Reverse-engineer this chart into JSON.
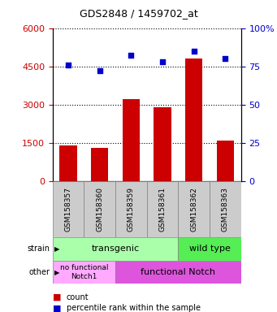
{
  "title": "GDS2848 / 1459702_at",
  "samples": [
    "GSM158357",
    "GSM158360",
    "GSM158359",
    "GSM158361",
    "GSM158362",
    "GSM158363"
  ],
  "counts": [
    1400,
    1300,
    3200,
    2900,
    4800,
    1600
  ],
  "percentiles": [
    76,
    72,
    82,
    78,
    85,
    80
  ],
  "ylim_left": [
    0,
    6000
  ],
  "ylim_right": [
    0,
    100
  ],
  "yticks_left": [
    0,
    1500,
    3000,
    4500,
    6000
  ],
  "yticks_right": [
    0,
    25,
    50,
    75,
    100
  ],
  "bar_color": "#cc0000",
  "dot_color": "#0000cc",
  "transgenic_color": "#aaffaa",
  "wildtype_color": "#55ee55",
  "nofunc_color": "#ffaaff",
  "func_color": "#dd55dd",
  "sample_box_color": "#cccccc",
  "tick_label_color_left": "#cc0000",
  "tick_label_color_right": "#0000cc",
  "legend_count_label": "count",
  "legend_pct_label": "percentile rank within the sample"
}
